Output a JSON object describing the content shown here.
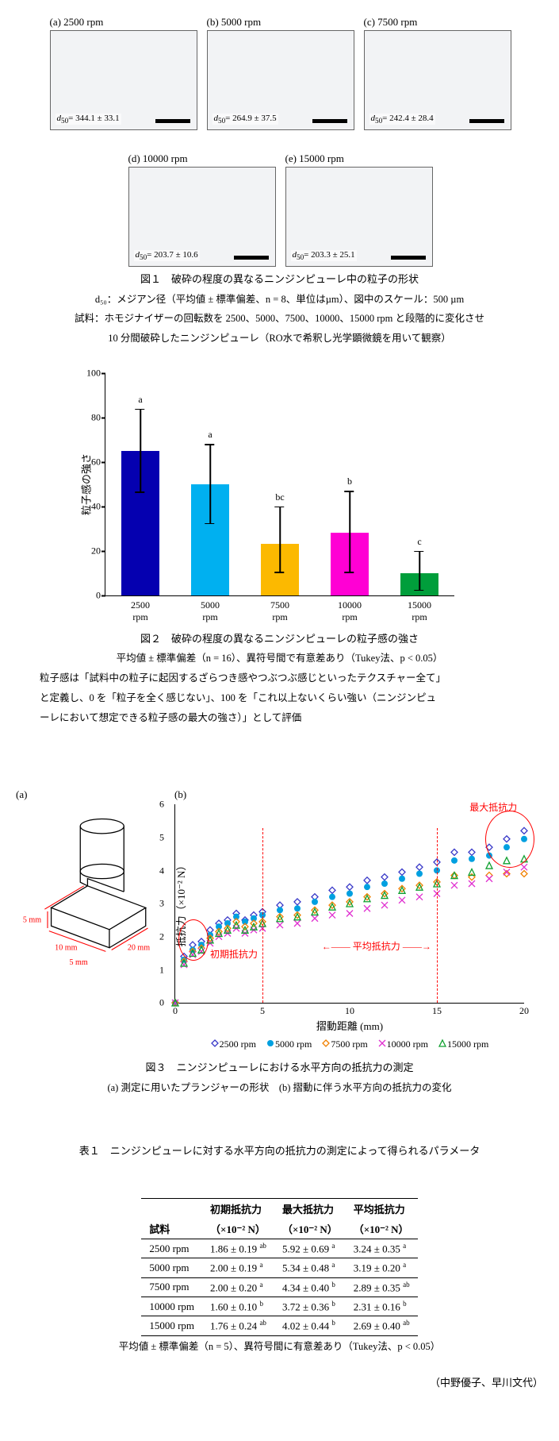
{
  "fig1": {
    "items": [
      {
        "key": "a",
        "rpm": "2500",
        "d50": "344.1 ± 33.1"
      },
      {
        "key": "b",
        "rpm": "5000",
        "d50": "264.9 ± 37.5"
      },
      {
        "key": "c",
        "rpm": "7500",
        "d50": "242.4 ± 28.4"
      },
      {
        "key": "d",
        "rpm": "10000",
        "d50": "203.7 ± 10.6"
      },
      {
        "key": "e",
        "rpm": "15000",
        "d50": "203.3 ± 25.1"
      }
    ],
    "caption_title": "図１　破砕の程度の異なるニンジンピューレ中の粒子の形状",
    "caption_line1": "d₅₀：メジアン径（平均値 ± 標準偏差、n = 8、単位はµm）、図中のスケール：500 µm",
    "caption_line2": "試料：ホモジナイザーの回転数を 2500、5000、7500、10000、15000 rpm と段階的に変化させ",
    "caption_line3": "10 分間破砕したニンジンピューレ（RO水で希釈し光学顕微鏡を用いて観察）"
  },
  "fig2": {
    "ymax": 100,
    "yticks": [
      0,
      20,
      40,
      60,
      80,
      100
    ],
    "ylabel": "粒子感の強さ",
    "bars": [
      {
        "cat": "2500\nrpm",
        "val": 65,
        "errLow": 46,
        "errHigh": 84,
        "sig": "a",
        "color": "#0500b0"
      },
      {
        "cat": "5000\nrpm",
        "val": 50,
        "errLow": 32,
        "errHigh": 68,
        "sig": "a",
        "color": "#00b0f0"
      },
      {
        "cat": "7500\nrpm",
        "val": 23,
        "errLow": 10,
        "errHigh": 40,
        "sig": "bc",
        "color": "#fcb900"
      },
      {
        "cat": "10000\nrpm",
        "val": 28,
        "errLow": 10,
        "errHigh": 47,
        "sig": "b",
        "color": "#ff00d4"
      },
      {
        "cat": "15000\nrpm",
        "val": 10,
        "errLow": 2,
        "errHigh": 20,
        "sig": "c",
        "color": "#009e3b"
      }
    ],
    "caption_title": "図２　破砕の程度の異なるニンジンピューレの粒子感の強さ",
    "caption_line1": "平均値 ± 標準偏差（n = 16）、異符号間で有意差あり（Tukey法、p < 0.05）",
    "caption_line2": "粒子感は「試料中の粒子に起因するざらつき感やつぶつぶ感じといったテクスチャー全て」",
    "caption_line3": "と定義し、0 を「粒子を全く感じない」、100 を「これ以上ないくらい強い（ニンジンピュ",
    "caption_line4": "ーレにおいて想定できる粒子感の最大の強さ）」として評価"
  },
  "fig3": {
    "a_label": "(a)",
    "b_label": "(b)",
    "dims": {
      "h": "5 mm",
      "w": "10 mm",
      "d": "5 mm",
      "l": "20 mm"
    },
    "xmax": 20,
    "ymax": 6,
    "xticks": [
      0,
      5,
      10,
      15,
      20
    ],
    "yticks": [
      0,
      1,
      2,
      3,
      4,
      5,
      6
    ],
    "xlabel": "摺動距離 (mm)",
    "ylabel": "抵抗力（×10⁻² N）",
    "anno_init": "初期抵抗力",
    "anno_avg": "平均抵抗力",
    "anno_max": "最大抵抗力",
    "series": [
      {
        "label": "2500 rpm",
        "color": "#3838c8",
        "marker": "diamond",
        "data": [
          [
            0,
            0
          ],
          [
            0.5,
            1.4
          ],
          [
            1,
            1.75
          ],
          [
            1.5,
            1.85
          ],
          [
            2,
            2.2
          ],
          [
            2.5,
            2.4
          ],
          [
            3,
            2.5
          ],
          [
            3.5,
            2.7
          ],
          [
            4,
            2.5
          ],
          [
            4.5,
            2.65
          ],
          [
            5,
            2.75
          ],
          [
            6,
            2.95
          ],
          [
            7,
            3.05
          ],
          [
            8,
            3.2
          ],
          [
            9,
            3.4
          ],
          [
            10,
            3.5
          ],
          [
            11,
            3.7
          ],
          [
            12,
            3.8
          ],
          [
            13,
            3.95
          ],
          [
            14,
            4.1
          ],
          [
            15,
            4.25
          ],
          [
            16,
            4.55
          ],
          [
            17,
            4.55
          ],
          [
            18,
            4.7
          ],
          [
            19,
            4.95
          ],
          [
            20,
            5.2
          ]
        ]
      },
      {
        "label": "5000 rpm",
        "color": "#00a0e0",
        "marker": "circle",
        "data": [
          [
            0,
            0
          ],
          [
            0.5,
            1.3
          ],
          [
            1,
            1.6
          ],
          [
            1.5,
            1.75
          ],
          [
            2,
            2.05
          ],
          [
            2.5,
            2.3
          ],
          [
            3,
            2.4
          ],
          [
            3.5,
            2.6
          ],
          [
            4,
            2.45
          ],
          [
            4.5,
            2.55
          ],
          [
            5,
            2.65
          ],
          [
            6,
            2.8
          ],
          [
            7,
            2.85
          ],
          [
            8,
            3.05
          ],
          [
            9,
            3.2
          ],
          [
            10,
            3.3
          ],
          [
            11,
            3.5
          ],
          [
            12,
            3.6
          ],
          [
            13,
            3.75
          ],
          [
            14,
            3.9
          ],
          [
            15,
            4.0
          ],
          [
            16,
            4.3
          ],
          [
            17,
            4.35
          ],
          [
            18,
            4.45
          ],
          [
            19,
            4.7
          ],
          [
            20,
            4.95
          ]
        ]
      },
      {
        "label": "7500 rpm",
        "color": "#f08000",
        "marker": "diamond",
        "data": [
          [
            0,
            0
          ],
          [
            0.5,
            1.25
          ],
          [
            1,
            1.55
          ],
          [
            1.5,
            1.65
          ],
          [
            2,
            1.95
          ],
          [
            2.5,
            2.15
          ],
          [
            3,
            2.25
          ],
          [
            3.5,
            2.45
          ],
          [
            4,
            2.3
          ],
          [
            4.5,
            2.4
          ],
          [
            5,
            2.45
          ],
          [
            6,
            2.6
          ],
          [
            7,
            2.65
          ],
          [
            8,
            2.8
          ],
          [
            9,
            2.95
          ],
          [
            10,
            3.05
          ],
          [
            11,
            3.2
          ],
          [
            12,
            3.3
          ],
          [
            13,
            3.45
          ],
          [
            14,
            3.55
          ],
          [
            15,
            3.65
          ],
          [
            16,
            3.85
          ],
          [
            17,
            3.8
          ],
          [
            18,
            3.85
          ],
          [
            19,
            3.9
          ],
          [
            20,
            3.9
          ]
        ]
      },
      {
        "label": "10000 rpm",
        "color": "#e030d0",
        "marker": "cross",
        "data": [
          [
            0,
            0
          ],
          [
            0.5,
            1.15
          ],
          [
            1,
            1.45
          ],
          [
            1.5,
            1.55
          ],
          [
            2,
            1.8
          ],
          [
            2.5,
            2.0
          ],
          [
            3,
            2.1
          ],
          [
            3.5,
            2.25
          ],
          [
            4,
            2.1
          ],
          [
            4.5,
            2.2
          ],
          [
            5,
            2.25
          ],
          [
            6,
            2.35
          ],
          [
            7,
            2.4
          ],
          [
            8,
            2.55
          ],
          [
            9,
            2.65
          ],
          [
            10,
            2.7
          ],
          [
            11,
            2.85
          ],
          [
            12,
            2.95
          ],
          [
            13,
            3.1
          ],
          [
            14,
            3.2
          ],
          [
            15,
            3.3
          ],
          [
            16,
            3.55
          ],
          [
            17,
            3.6
          ],
          [
            18,
            3.75
          ],
          [
            19,
            3.95
          ],
          [
            20,
            4.1
          ]
        ]
      },
      {
        "label": "15000 rpm",
        "color": "#10a030",
        "marker": "triangle",
        "data": [
          [
            0,
            0
          ],
          [
            0.5,
            1.2
          ],
          [
            1,
            1.5
          ],
          [
            1.5,
            1.6
          ],
          [
            2,
            1.9
          ],
          [
            2.5,
            2.1
          ],
          [
            3,
            2.2
          ],
          [
            3.5,
            2.35
          ],
          [
            4,
            2.2
          ],
          [
            4.5,
            2.3
          ],
          [
            5,
            2.4
          ],
          [
            6,
            2.55
          ],
          [
            7,
            2.6
          ],
          [
            8,
            2.75
          ],
          [
            9,
            2.9
          ],
          [
            10,
            3.0
          ],
          [
            11,
            3.15
          ],
          [
            12,
            3.25
          ],
          [
            13,
            3.4
          ],
          [
            14,
            3.5
          ],
          [
            15,
            3.6
          ],
          [
            16,
            3.85
          ],
          [
            17,
            3.95
          ],
          [
            18,
            4.15
          ],
          [
            19,
            4.3
          ],
          [
            20,
            4.35
          ]
        ]
      }
    ],
    "caption_title": "図３　ニンジンピューレにおける水平方向の抵抗力の測定",
    "caption_line1": "(a) 測定に用いたプランジャーの形状　(b) 摺動に伴う水平方向の抵抗力の変化"
  },
  "table1": {
    "title": "表１　ニンジンピューレに対する水平方向の抵抗力の測定によって得られるパラメータ",
    "col_sample": "試料",
    "col_init": "初期抵抗力",
    "col_max": "最大抵抗力",
    "col_avg": "平均抵抗力",
    "unit": "（×10⁻² N）",
    "rows": [
      {
        "s": "2500 rpm",
        "init": "1.86 ± 0.19",
        "init_s": "ab",
        "max": "5.92 ± 0.69",
        "max_s": "a",
        "avg": "3.24 ± 0.35",
        "avg_s": "a"
      },
      {
        "s": "5000 rpm",
        "init": "2.00 ± 0.19",
        "init_s": "a",
        "max": "5.34 ± 0.48",
        "max_s": "a",
        "avg": "3.19 ± 0.20",
        "avg_s": "a"
      },
      {
        "s": "7500 rpm",
        "init": "2.00 ± 0.20",
        "init_s": "a",
        "max": "4.34 ± 0.40",
        "max_s": "b",
        "avg": "2.89 ± 0.35",
        "avg_s": "ab"
      },
      {
        "s": "10000 rpm",
        "init": "1.60 ± 0.10",
        "init_s": "b",
        "max": "3.72 ± 0.36",
        "max_s": "b",
        "avg": "2.31 ± 0.16",
        "avg_s": "b"
      },
      {
        "s": "15000 rpm",
        "init": "1.76 ± 0.24",
        "init_s": "ab",
        "max": "4.02 ± 0.44",
        "max_s": "b",
        "avg": "2.69 ± 0.40",
        "avg_s": "ab"
      }
    ],
    "footer": "平均値 ± 標準偏差（n = 5）、異符号間に有意差あり（Tukey法、p < 0.05）"
  },
  "author": "（中野優子、早川文代）"
}
